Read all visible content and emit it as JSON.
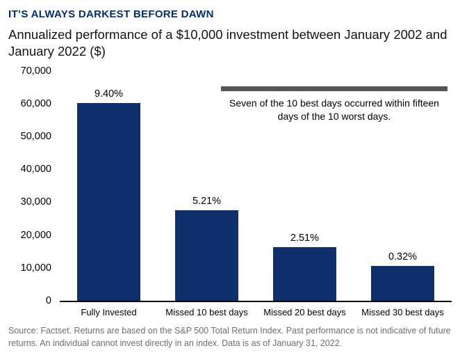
{
  "header": {
    "title": "IT’S ALWAYS DARKEST BEFORE DAWN",
    "subtitle": "Annualized performance of a $10,000 investment between January 2002 and January 2022 ($)"
  },
  "chart_data": {
    "type": "bar",
    "title": "IT’S ALWAYS DARKEST BEFORE DAWN",
    "subtitle": "Annualized performance of a $10,000 investment between January 2002 and January 2022 ($)",
    "categories": [
      "Fully Invested",
      "Missed 10 best days",
      "Missed 20 best days",
      "Missed 30 best days"
    ],
    "values": [
      60300,
      27500,
      16400,
      10650
    ],
    "bar_labels": [
      "9.40%",
      "5.21%",
      "2.51%",
      "0.32%"
    ],
    "xlabel": "",
    "ylabel": "",
    "ylim": [
      0,
      70000
    ],
    "yticks": [
      70000,
      60000,
      50000,
      40000,
      30000,
      20000,
      10000,
      0
    ],
    "ytick_labels": [
      "70,000",
      "60,000",
      "50,000",
      "40,000",
      "30,000",
      "20,000",
      "10,000",
      "0"
    ],
    "grid": false,
    "legend": "none",
    "bar_color": "#0f2f6e",
    "annotation": "Seven of the 10 best days occurred within fifteen days of the 10 worst days.",
    "annotation_bar_color": "#54565b"
  },
  "footer": {
    "source": "Source: Factset. Returns are based on the S&P 500 Total Return Index. Past performance is not indicative of future returns. An individual cannot invest directly in an index. Data is as of January 31, 2022."
  }
}
